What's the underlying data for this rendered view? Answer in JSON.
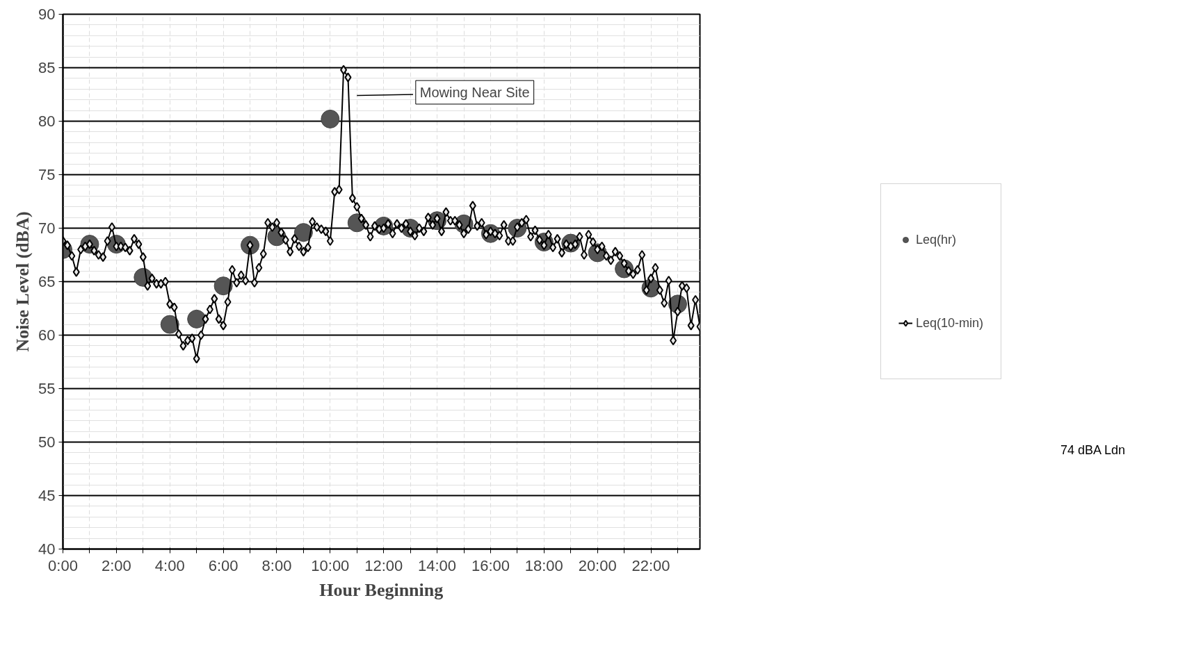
{
  "chart_data": {
    "type": "line",
    "xlabel": "Hour Beginning",
    "ylabel": "Noise Level (dBA)",
    "xlim": [
      0,
      23.8333
    ],
    "ylim": [
      40,
      90
    ],
    "xticks": [
      {
        "value": 0,
        "label": "0:00"
      },
      {
        "value": 1,
        "label": null
      },
      {
        "value": 2,
        "label": "2:00"
      },
      {
        "value": 3,
        "label": null
      },
      {
        "value": 4,
        "label": "4:00"
      },
      {
        "value": 5,
        "label": null
      },
      {
        "value": 6,
        "label": "6:00"
      },
      {
        "value": 7,
        "label": null
      },
      {
        "value": 8,
        "label": "8:00"
      },
      {
        "value": 9,
        "label": null
      },
      {
        "value": 10,
        "label": "10:00"
      },
      {
        "value": 11,
        "label": null
      },
      {
        "value": 12,
        "label": "12:00"
      },
      {
        "value": 13,
        "label": null
      },
      {
        "value": 14,
        "label": "14:00"
      },
      {
        "value": 15,
        "label": null
      },
      {
        "value": 16,
        "label": "16:00"
      },
      {
        "value": 17,
        "label": null
      },
      {
        "value": 18,
        "label": "18:00"
      },
      {
        "value": 19,
        "label": null
      },
      {
        "value": 20,
        "label": "20:00"
      },
      {
        "value": 21,
        "label": null
      },
      {
        "value": 22,
        "label": "22:00"
      },
      {
        "value": 23,
        "label": null
      }
    ],
    "yticks": [
      40,
      45,
      50,
      55,
      60,
      65,
      70,
      75,
      80,
      85,
      90
    ],
    "grid": true,
    "legend": "right",
    "series": [
      {
        "name": "Leq(hr)",
        "type": "scatter",
        "marker": "circle",
        "color": "#555555",
        "x": [
          0,
          1,
          2,
          3,
          4,
          5,
          6,
          7,
          8,
          9,
          10,
          11,
          12,
          13,
          14,
          15,
          16,
          17,
          18,
          19,
          20,
          21,
          22,
          23
        ],
        "values": [
          68.0,
          68.5,
          68.5,
          65.4,
          61.0,
          61.5,
          64.6,
          68.4,
          69.2,
          69.6,
          80.2,
          70.5,
          70.2,
          70.0,
          70.7,
          70.4,
          69.5,
          70.0,
          68.7,
          68.6,
          67.7,
          66.2,
          64.4,
          62.9
        ]
      },
      {
        "name": "Leq(10-min)",
        "marker": "diamond",
        "color": "#000000",
        "x": [
          0,
          0.1667,
          0.3333,
          0.5,
          0.6667,
          0.8333,
          1,
          1.1667,
          1.3333,
          1.5,
          1.6667,
          1.8333,
          2,
          2.1667,
          2.3333,
          2.5,
          2.6667,
          2.8333,
          3,
          3.1667,
          3.3333,
          3.5,
          3.6667,
          3.8333,
          4,
          4.1667,
          4.3333,
          4.5,
          4.6667,
          4.8333,
          5,
          5.1667,
          5.3333,
          5.5,
          5.6667,
          5.8333,
          6,
          6.1667,
          6.3333,
          6.5,
          6.6667,
          6.8333,
          7,
          7.1667,
          7.3333,
          7.5,
          7.6667,
          7.8333,
          8,
          8.1667,
          8.3333,
          8.5,
          8.6667,
          8.8333,
          9,
          9.1667,
          9.3333,
          9.5,
          9.6667,
          9.8333,
          10,
          10.1667,
          10.3333,
          10.5,
          10.6667,
          10.8333,
          11,
          11.1667,
          11.3333,
          11.5,
          11.6667,
          11.8333,
          12,
          12.1667,
          12.3333,
          12.5,
          12.6667,
          12.8333,
          13,
          13.1667,
          13.3333,
          13.5,
          13.6667,
          13.8333,
          14,
          14.1667,
          14.3333,
          14.5,
          14.6667,
          14.8333,
          15,
          15.1667,
          15.3333,
          15.5,
          15.6667,
          15.8333,
          16,
          16.1667,
          16.3333,
          16.5,
          16.6667,
          16.8333,
          17,
          17.1667,
          17.3333,
          17.5,
          17.6667,
          17.8333,
          18,
          18.1667,
          18.3333,
          18.5,
          18.6667,
          18.8333,
          19,
          19.1667,
          19.3333,
          19.5,
          19.6667,
          19.8333,
          20,
          20.1667,
          20.3333,
          20.5,
          20.6667,
          20.8333,
          21,
          21.1667,
          21.3333,
          21.5,
          21.6667,
          21.8333,
          22,
          22.1667,
          22.3333,
          22.5,
          22.6667,
          22.8333,
          23,
          23.1667,
          23.3333,
          23.5,
          23.6667,
          23.8333
        ],
        "values": [
          68.8,
          68.4,
          67.4,
          65.9,
          68.0,
          68.3,
          68.5,
          67.9,
          67.5,
          67.3,
          68.8,
          70.1,
          68.3,
          68.3,
          68.2,
          67.9,
          69.0,
          68.5,
          67.3,
          64.6,
          65.3,
          64.8,
          64.8,
          65.0,
          62.9,
          62.6,
          60.1,
          59.0,
          59.5,
          59.7,
          57.8,
          60.0,
          61.5,
          62.4,
          63.4,
          61.5,
          60.9,
          63.1,
          66.1,
          64.9,
          65.6,
          65.1,
          68.4,
          64.9,
          66.3,
          67.6,
          70.5,
          70.1,
          70.5,
          69.6,
          68.9,
          67.8,
          69.0,
          68.3,
          67.8,
          68.2,
          70.6,
          70.1,
          69.9,
          69.7,
          68.8,
          73.4,
          73.6,
          84.8,
          84.1,
          72.8,
          72.0,
          70.9,
          70.3,
          69.2,
          70.2,
          69.9,
          70.0,
          70.4,
          69.5,
          70.4,
          70.0,
          70.4,
          69.7,
          69.3,
          70.0,
          69.7,
          71.0,
          70.3,
          70.9,
          69.7,
          71.5,
          70.7,
          70.7,
          70.3,
          69.5,
          69.9,
          72.1,
          70.2,
          70.5,
          69.4,
          69.7,
          69.5,
          69.3,
          70.3,
          68.8,
          68.8,
          70.1,
          70.5,
          70.8,
          69.2,
          69.8,
          68.9,
          68.4,
          69.4,
          68.2,
          69.0,
          67.7,
          68.5,
          68.3,
          68.5,
          69.2,
          67.5,
          69.4,
          68.7,
          68.0,
          68.3,
          67.4,
          67.0,
          67.8,
          67.4,
          66.7,
          66.0,
          65.7,
          66.1,
          67.5,
          64.2,
          65.3,
          66.3,
          64.2,
          63.0,
          65.1,
          59.5,
          62.2,
          64.6,
          64.4,
          60.9,
          63.3,
          60.8
        ]
      }
    ],
    "annotations": [
      "Mowing Near Site",
      "74 dBA Ldn"
    ]
  }
}
